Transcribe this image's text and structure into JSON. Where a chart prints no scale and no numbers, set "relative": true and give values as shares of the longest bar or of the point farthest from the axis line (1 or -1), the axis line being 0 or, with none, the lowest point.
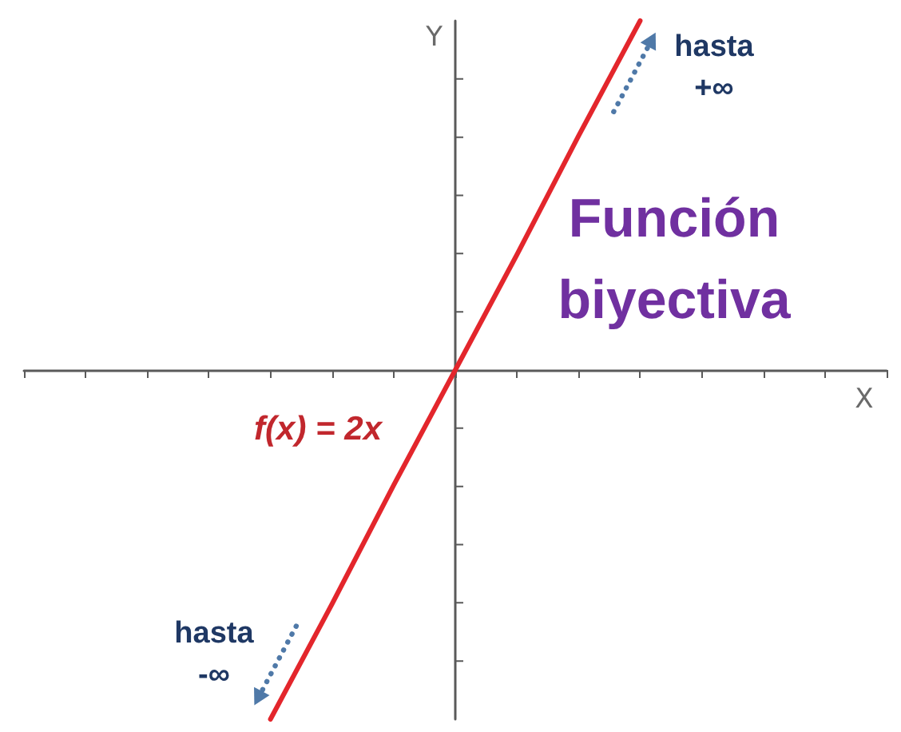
{
  "chart_data": {
    "type": "line",
    "xlabel": "X",
    "ylabel": "Y",
    "categories": [
      null,
      null,
      null,
      null,
      null,
      null,
      null,
      null,
      null,
      null,
      null,
      null,
      null,
      null,
      null
    ],
    "series": [
      {
        "name": "f(x) = 2x",
        "color": "#e3262c",
        "values": [
          null,
          null,
          null,
          null,
          -1,
          -0.67,
          -0.33,
          0,
          0.33,
          0.67,
          1,
          null,
          null,
          null,
          null
        ]
      }
    ],
    "relative": true,
    "marker": "none",
    "line_style": "solid",
    "annotations": [
      "hasta +∞",
      "Función biyectiva",
      "hasta -∞"
    ]
  }
}
